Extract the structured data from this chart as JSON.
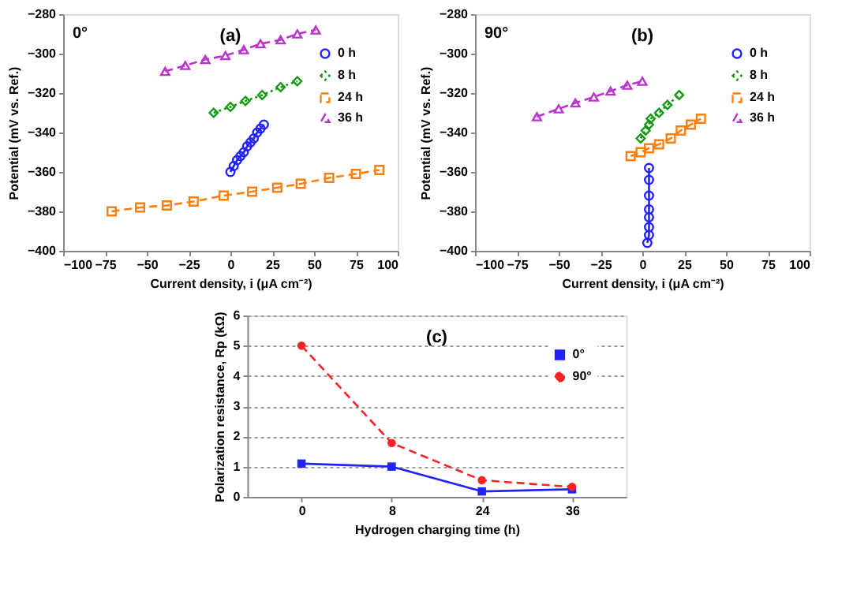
{
  "chart_data": [
    {
      "type": "line",
      "title": "(a)",
      "annotations": [
        "0°"
      ],
      "xlabel": "Current density, i (μA cm⁻²)",
      "ylabel": "Potential (mV vs. Ref.)",
      "xlim": [
        -100,
        100
      ],
      "xticks": [
        {
          "value": -100,
          "label": "−100"
        },
        {
          "value": -75,
          "label": "−75"
        },
        {
          "value": -50,
          "label": "−50"
        },
        {
          "value": -25,
          "label": "−25"
        },
        0,
        25,
        50,
        75,
        100
      ],
      "ylim": [
        -400,
        -280
      ],
      "yticks": [
        {
          "value": -400,
          "label": "−400"
        },
        {
          "value": -380,
          "label": "−380"
        },
        {
          "value": -360,
          "label": "−360"
        },
        {
          "value": -340,
          "label": "−340"
        },
        {
          "value": -320,
          "label": "−320"
        },
        {
          "value": -300,
          "label": "−300"
        },
        {
          "value": -280,
          "label": "−280"
        }
      ],
      "grid": false,
      "legend": "top right",
      "series": [
        {
          "name": "0 h",
          "color": "#2222ff",
          "marker": "circle",
          "line_style": "solid",
          "x": [
            0,
            2,
            4,
            6,
            8,
            10,
            12,
            14,
            16,
            18,
            20
          ],
          "values": [
            -360,
            -357,
            -354,
            -352,
            -350,
            -347,
            -345,
            -343,
            -340,
            -338,
            -336
          ]
        },
        {
          "name": "8 h",
          "color": "#119911",
          "marker": "diamond",
          "line_style": "dotted",
          "x": [
            -10,
            0,
            9,
            19,
            30,
            40
          ],
          "values": [
            -330,
            -327,
            -324,
            -321,
            -317,
            -314
          ]
        },
        {
          "name": "24 h",
          "color": "#ff7f0e",
          "marker": "square",
          "line_style": "dashed",
          "x": [
            -71,
            -54,
            -38,
            -22,
            -4,
            13,
            28,
            42,
            59,
            75,
            89
          ],
          "values": [
            -380,
            -378,
            -377,
            -375,
            -372,
            -370,
            -368,
            -366,
            -363,
            -361,
            -359
          ]
        },
        {
          "name": "36 h",
          "color": "#bb33cc",
          "marker": "triangle",
          "line_style": "dashed",
          "x": [
            -39,
            -27,
            -15,
            -3,
            8,
            18,
            30,
            40,
            51
          ],
          "values": [
            -309,
            -306,
            -303,
            -301,
            -298,
            -295,
            -293,
            -290,
            -288
          ]
        }
      ]
    },
    {
      "type": "line",
      "title": "(b)",
      "annotations": [
        "90°"
      ],
      "xlabel": "Current density, i (μA cm⁻²)",
      "ylabel": "Potential (mV vs. Ref.)",
      "xlim": [
        -100,
        100
      ],
      "xticks": [
        {
          "value": -100,
          "label": "−100"
        },
        {
          "value": -75,
          "label": "−75"
        },
        {
          "value": -50,
          "label": "−50"
        },
        {
          "value": -25,
          "label": "−25"
        },
        0,
        25,
        50,
        75,
        100
      ],
      "ylim": [
        -400,
        -280
      ],
      "yticks": [
        {
          "value": -400,
          "label": "−400"
        },
        {
          "value": -380,
          "label": "−380"
        },
        {
          "value": -360,
          "label": "−360"
        },
        {
          "value": -340,
          "label": "−340"
        },
        {
          "value": -320,
          "label": "−320"
        },
        {
          "value": -300,
          "label": "−300"
        },
        {
          "value": -280,
          "label": "−280"
        }
      ],
      "grid": false,
      "legend": "top right",
      "series": [
        {
          "name": "0 h",
          "color": "#2222ff",
          "marker": "circle",
          "line_style": "solid",
          "x": [
            4,
            4,
            4,
            4,
            4,
            4,
            4,
            3
          ],
          "values": [
            -358,
            -364,
            -372,
            -379,
            -383,
            -388,
            -392,
            -396
          ]
        },
        {
          "name": "8 h",
          "color": "#119911",
          "marker": "diamond",
          "line_style": "dotted",
          "x": [
            -1,
            2,
            4,
            5,
            10,
            15,
            22
          ],
          "values": [
            -343,
            -339,
            -336,
            -333,
            -330,
            -326,
            -321
          ]
        },
        {
          "name": "24 h",
          "color": "#ff7f0e",
          "marker": "square",
          "line_style": "dashed",
          "x": [
            -7,
            -1,
            4,
            10,
            17,
            23,
            29,
            35
          ],
          "values": [
            -352,
            -350,
            -348,
            -346,
            -343,
            -339,
            -336,
            -333
          ]
        },
        {
          "name": "36 h",
          "color": "#bb33cc",
          "marker": "triangle",
          "line_style": "dashed",
          "x": [
            -63,
            -50,
            -40,
            -29,
            -19,
            -9,
            0
          ],
          "values": [
            -332,
            -328,
            -325,
            -322,
            -319,
            -316,
            -314
          ]
        }
      ]
    },
    {
      "type": "line",
      "title": "(c)",
      "xlabel": "Hydrogen charging time (h)",
      "ylabel": "Polarization resistance, Rp (kΩ)",
      "categories": [
        "0",
        "8",
        "24",
        "36"
      ],
      "ylim": [
        0,
        6
      ],
      "yticks": [
        0,
        1,
        2,
        3,
        4,
        5,
        6
      ],
      "grid": "y",
      "legend": "top right",
      "series": [
        {
          "name": "0°",
          "color": "#2222ff",
          "marker": "square",
          "line_style": "solid",
          "values": [
            1.1,
            1.0,
            0.18,
            0.25
          ]
        },
        {
          "name": "90°",
          "color": "#ff2222",
          "marker": "circle",
          "line_style": "dashed",
          "values": [
            5.0,
            1.78,
            0.55,
            0.33
          ]
        }
      ]
    }
  ]
}
